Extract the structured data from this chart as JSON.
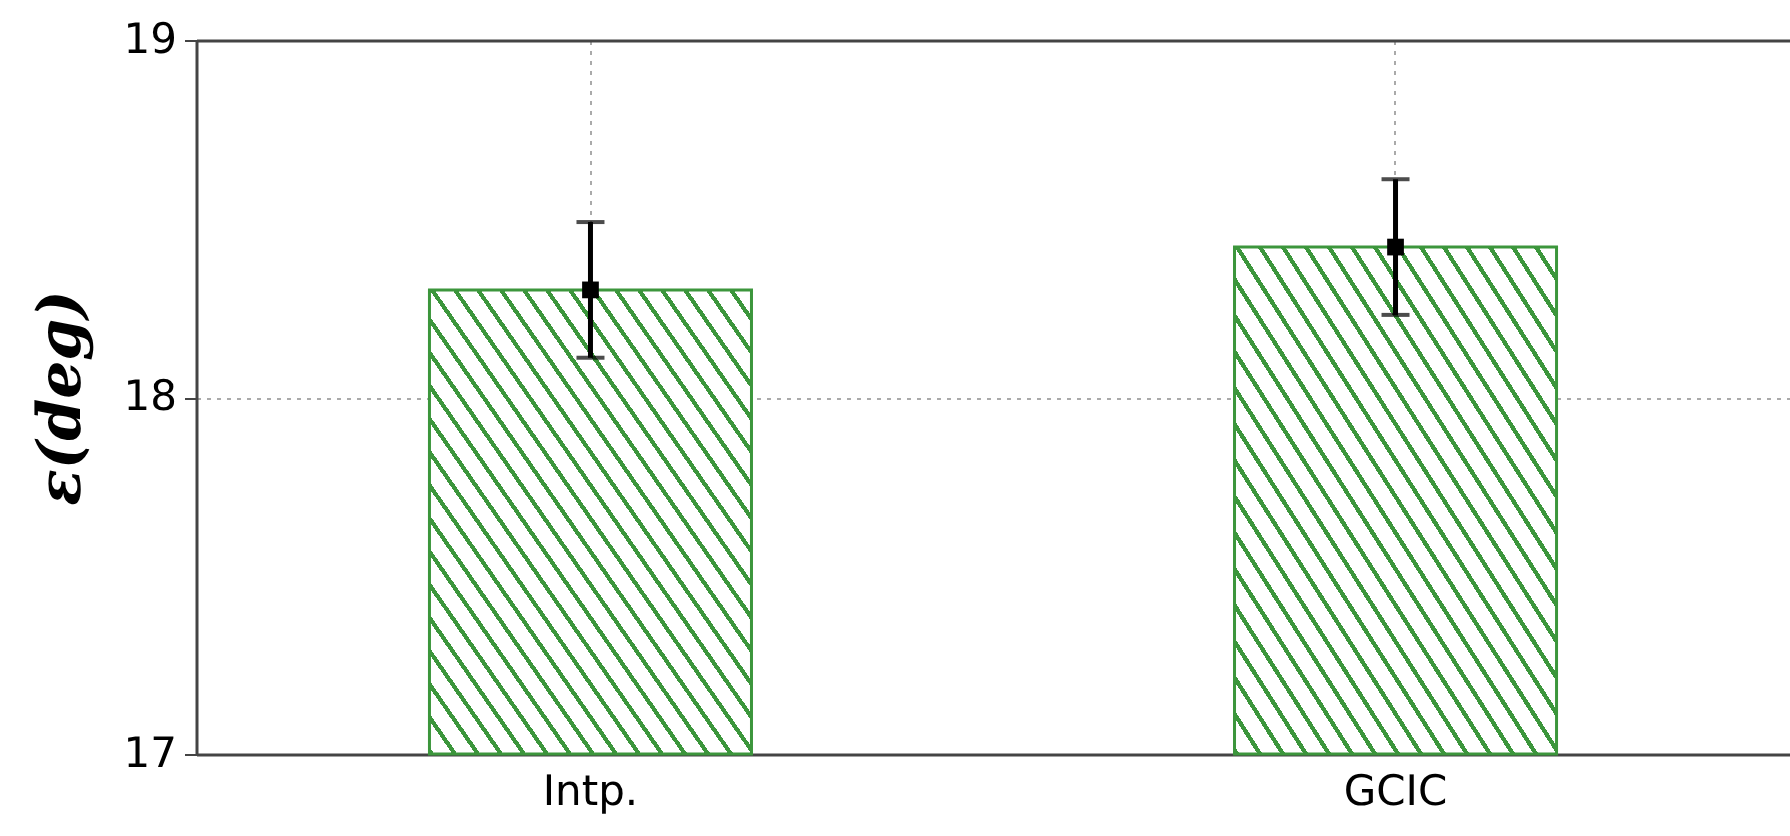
{
  "chart_data": {
    "type": "bar",
    "ylabel": "ε(deg)",
    "categories": [
      "Intp.",
      "GCIC"
    ],
    "series": [
      {
        "color": "#3c963c",
        "values": [
          18.3,
          18.42
        ],
        "errors": [
          0.19,
          0.19
        ]
      },
      {
        "type": "scatter",
        "x": [
          "Intp.",
          "GCIC"
        ],
        "values": [
          18.3,
          18.42
        ],
        "color": "#000000",
        "marker": "square"
      }
    ],
    "ylim": [
      17,
      19
    ],
    "yticks": [
      17,
      18,
      19
    ],
    "grid": true
  }
}
